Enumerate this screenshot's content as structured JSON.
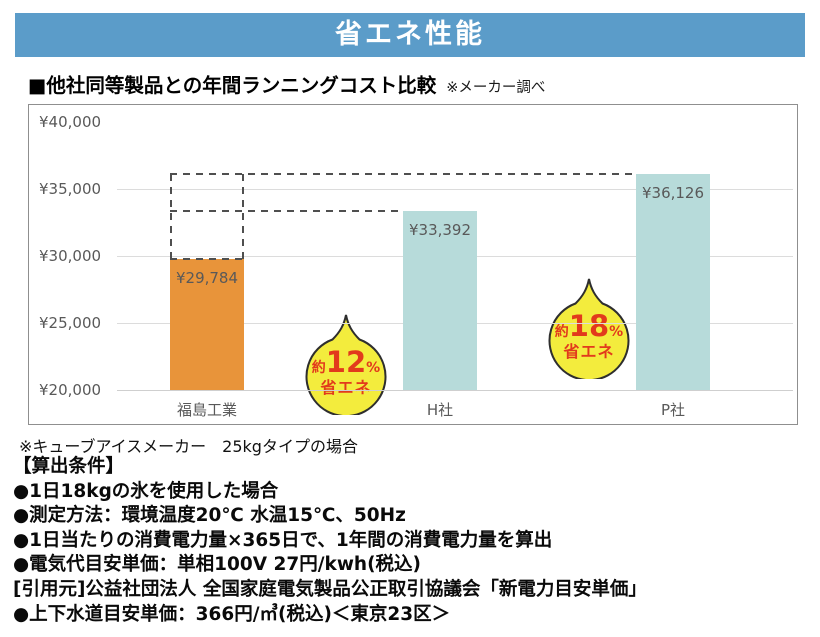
{
  "banner": {
    "title": "省エネ性能",
    "bg_color": "#5B9CC9"
  },
  "heading": {
    "title": "■他社同等製品との年間ランニングコスト比較",
    "note": "※メーカー調べ"
  },
  "chart_data": {
    "type": "bar",
    "title": "他社同等製品との年間ランニングコスト比較",
    "categories": [
      "福島工業",
      "H社",
      "P社"
    ],
    "values": [
      29784,
      33392,
      36126
    ],
    "value_labels": [
      "¥29,784",
      "¥33,392",
      "¥36,126"
    ],
    "bar_colors": [
      "#E8943A",
      "#B7DBDA",
      "#B7DBDA"
    ],
    "ylim": [
      20000,
      40000
    ],
    "ytick_values": [
      40000,
      35000,
      30000,
      25000,
      20000
    ],
    "ytick_labels": [
      "¥40,000",
      "¥35,000",
      "¥30,000",
      "¥25,000",
      "¥20,000"
    ],
    "grid": true,
    "legend": "none",
    "reference_lines": [
      {
        "value": 36126,
        "style": "dashed",
        "from_bar": 0,
        "to_bar": 2
      },
      {
        "value": 33392,
        "style": "dashed",
        "from_bar": 0,
        "to_bar": 1
      }
    ],
    "ghost_box": {
      "bar": 0,
      "top_value": 36126
    },
    "annotations": [
      {
        "prefix": "約",
        "number": "12",
        "percent": "%",
        "line2": "省エネ",
        "points_to_value": 33392,
        "bubble_color": "#F3EC3D",
        "text_color": "#E23A1C"
      },
      {
        "prefix": "約",
        "number": "18",
        "percent": "%",
        "line2": "省エネ",
        "points_to_value": 36126,
        "bubble_color": "#F3EC3D",
        "text_color": "#E23A1C"
      }
    ]
  },
  "footnote": "※キューブアイスメーカー　25kgタイプの場合",
  "conditions": {
    "heading": "【算出条件】",
    "items": [
      "●1日18kgの氷を使用した場合",
      "●測定方法：環境温度20℃ 水温15℃、50Hz",
      "●1日当たりの消費電力量×365日で、1年間の消費電力量を算出",
      "●電気代目安単価：単相100V 27円/kwh(税込)",
      "[引用元]公益社団法人 全国家庭電気製品公正取引協議会「新電力目安単価」",
      "●上下水道目安単価：366円/㎥(税込)＜東京23区＞"
    ]
  }
}
